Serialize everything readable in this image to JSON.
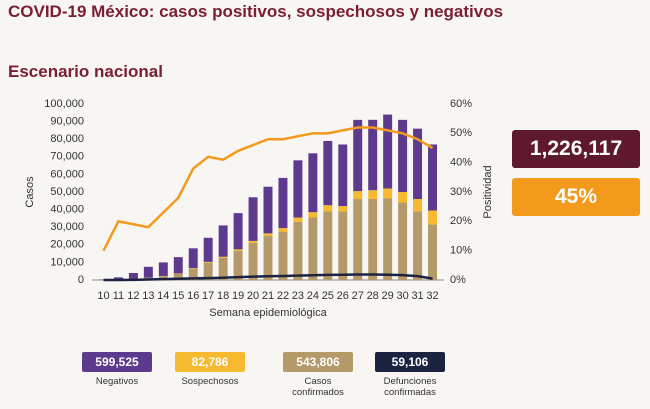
{
  "title": "COVID-19 México: casos positivos, sospechosos y negativos",
  "subtitle": "Escenario nacional",
  "highlights": [
    {
      "text": "1,226,117",
      "color": "#5e1a2c"
    },
    {
      "text": "45%",
      "color": "#f39a1c"
    }
  ],
  "chart_data": {
    "type": "bar",
    "stacked": true,
    "x_label": "Semana epidemiológica",
    "y_label": "Casos",
    "y2_label": "Positividad",
    "categories": [
      "10",
      "11",
      "12",
      "13",
      "14",
      "15",
      "16",
      "17",
      "18",
      "19",
      "20",
      "21",
      "22",
      "23",
      "24",
      "25",
      "26",
      "27",
      "28",
      "29",
      "30",
      "31",
      "32"
    ],
    "series": [
      {
        "name": "Casos confirmados",
        "total": "543,806",
        "color": "#b39a68",
        "kind": "bar",
        "values": [
          20,
          300,
          700,
          1300,
          2200,
          3500,
          6500,
          9800,
          12500,
          16500,
          21000,
          25000,
          27500,
          33000,
          35500,
          39000,
          39000,
          46000,
          46000,
          46500,
          44000,
          39000,
          31500
        ]
      },
      {
        "name": "Sospechosos",
        "total": "82,786",
        "color": "#f6b930",
        "kind": "bar",
        "values": [
          0,
          0,
          0,
          0,
          100,
          200,
          300,
          500,
          700,
          900,
          1200,
          1500,
          2000,
          2500,
          3000,
          3500,
          3000,
          4500,
          5000,
          5500,
          6000,
          7000,
          8000
        ]
      },
      {
        "name": "Negativos",
        "total": "599,525",
        "color": "#5d3a8e",
        "kind": "bar",
        "values": [
          180,
          1200,
          3300,
          6200,
          7700,
          9300,
          11200,
          13700,
          17800,
          20600,
          24800,
          26500,
          28500,
          32500,
          33500,
          36500,
          35000,
          40500,
          40000,
          42000,
          41000,
          40000,
          37500
        ]
      },
      {
        "name": "Defunciones confirmadas",
        "total": "59,106",
        "color": "#1c2340",
        "kind": "line",
        "values": [
          0,
          20,
          100,
          300,
          500,
          700,
          900,
          1100,
          1300,
          1600,
          1900,
          2100,
          2300,
          2500,
          2700,
          2900,
          3000,
          3100,
          3100,
          3000,
          2800,
          2200,
          800
        ]
      },
      {
        "color": "#f39a1c",
        "kind": "line",
        "axis": "y2",
        "values": [
          10,
          20,
          19,
          18,
          23,
          28,
          38,
          42,
          41,
          44,
          46,
          48,
          48,
          49,
          50,
          50,
          51,
          52,
          52,
          51,
          50,
          48,
          45
        ]
      }
    ],
    "legend_order": [
      2,
      1,
      0,
      3
    ],
    "ylim": [
      0,
      100000
    ],
    "yticks": [
      0,
      {
        "value": 10000,
        "label": "10,000"
      },
      {
        "value": 20000,
        "label": "20,000"
      },
      {
        "value": 30000,
        "label": "30,000"
      },
      {
        "value": 40000,
        "label": "40,000"
      },
      {
        "value": 50000,
        "label": "50,000"
      },
      {
        "value": 60000,
        "label": "60,000"
      },
      {
        "value": 70000,
        "label": "70,000"
      },
      {
        "value": 80000,
        "label": "80,000"
      },
      {
        "value": 90000,
        "label": "90,000"
      },
      {
        "value": 100000,
        "label": "100,000"
      }
    ],
    "y2lim": [
      0,
      60
    ],
    "y2ticks": [
      {
        "value": 0,
        "label": "0%"
      },
      {
        "value": 10,
        "label": "10%"
      },
      {
        "value": 20,
        "label": "20%"
      },
      {
        "value": 30,
        "label": "30%"
      },
      {
        "value": 40,
        "label": "40%"
      },
      {
        "value": 50,
        "label": "50%"
      },
      {
        "value": 60,
        "label": "60%"
      }
    ]
  }
}
